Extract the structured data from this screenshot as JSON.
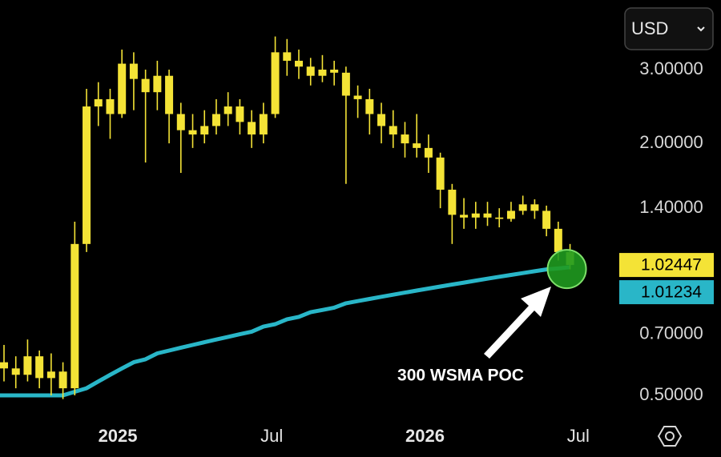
{
  "chart_data": {
    "type": "candlestick",
    "currency": "USD",
    "log_scale": true,
    "color": "#f4e336",
    "categories": [
      null,
      null,
      null,
      null,
      null,
      null,
      null,
      null,
      null,
      null,
      null,
      null,
      null,
      null,
      null,
      null,
      null,
      null,
      null,
      null,
      null,
      null,
      null,
      null,
      null,
      null,
      null,
      null,
      null,
      null,
      null,
      null,
      null,
      null,
      null,
      null,
      null,
      null,
      null,
      null,
      null,
      null,
      null,
      null,
      null,
      null,
      null,
      null,
      null
    ],
    "open": [
      0.6,
      0.58,
      0.56,
      0.62,
      0.55,
      0.57,
      0.52,
      1.15,
      2.45,
      2.55,
      2.35,
      3.1,
      2.85,
      2.65,
      2.9,
      2.35,
      2.15,
      2.1,
      2.2,
      2.35,
      2.45,
      2.25,
      2.1,
      2.35,
      3.3,
      3.15,
      3.05,
      2.9,
      3.0,
      2.95,
      2.6,
      2.55,
      2.35,
      2.2,
      2.1,
      2.0,
      1.95,
      1.85,
      1.55,
      1.35,
      1.33,
      1.36,
      1.33,
      1.32,
      1.38,
      1.43,
      1.38,
      1.25,
      1.1
    ],
    "high": [
      0.66,
      0.62,
      0.68,
      0.64,
      0.63,
      0.6,
      1.3,
      2.7,
      2.8,
      2.7,
      3.35,
      3.3,
      3.0,
      3.15,
      3.0,
      2.5,
      2.35,
      2.4,
      2.55,
      2.65,
      2.55,
      2.4,
      2.5,
      3.6,
      3.55,
      3.35,
      3.2,
      3.25,
      3.15,
      3.05,
      2.75,
      2.7,
      2.5,
      2.4,
      2.25,
      2.35,
      2.1,
      1.9,
      1.6,
      1.48,
      1.45,
      1.45,
      1.4,
      1.45,
      1.5,
      1.47,
      1.42,
      1.3,
      1.15
    ],
    "low": [
      0.54,
      0.52,
      0.54,
      0.52,
      0.5,
      0.49,
      0.5,
      1.1,
      2.2,
      2.05,
      2.3,
      2.4,
      1.8,
      2.4,
      2.0,
      1.7,
      1.95,
      2.0,
      2.1,
      2.2,
      2.1,
      1.95,
      2.0,
      2.3,
      2.9,
      2.85,
      2.75,
      2.8,
      2.75,
      1.6,
      2.3,
      2.1,
      2.0,
      1.95,
      1.85,
      1.85,
      1.7,
      1.4,
      1.15,
      1.25,
      1.25,
      1.27,
      1.26,
      1.3,
      1.35,
      1.32,
      1.2,
      1.05,
      1.0
    ],
    "close": [
      0.58,
      0.56,
      0.62,
      0.55,
      0.57,
      0.52,
      1.15,
      2.45,
      2.55,
      2.35,
      3.1,
      2.85,
      2.65,
      2.9,
      2.35,
      2.15,
      2.1,
      2.2,
      2.35,
      2.45,
      2.25,
      2.1,
      2.35,
      3.3,
      3.15,
      3.05,
      2.9,
      3.0,
      2.95,
      2.6,
      2.55,
      2.35,
      2.2,
      2.1,
      2.0,
      1.95,
      1.85,
      1.55,
      1.35,
      1.33,
      1.36,
      1.33,
      1.32,
      1.38,
      1.43,
      1.38,
      1.25,
      1.1,
      1.02447
    ],
    "overlay": {
      "type": "line",
      "color": "#29b6c8",
      "values": [
        0.5,
        0.5,
        0.5,
        0.5,
        0.5,
        0.5,
        0.51,
        0.52,
        0.54,
        0.56,
        0.58,
        0.6,
        0.61,
        0.63,
        0.64,
        0.65,
        0.66,
        0.67,
        0.68,
        0.69,
        0.7,
        0.71,
        0.73,
        0.74,
        0.76,
        0.77,
        0.79,
        0.8,
        0.81,
        0.83,
        0.84,
        0.85,
        0.86,
        0.87,
        0.88,
        0.89,
        0.9,
        0.91,
        0.92,
        0.93,
        0.94,
        0.95,
        0.96,
        0.97,
        0.98,
        0.99,
        1.0,
        1.005,
        1.01234
      ]
    },
    "ylim": [
      0.446,
      4.4
    ],
    "yticks": [
      {
        "value": 3,
        "label": "3.00000"
      },
      {
        "value": 2,
        "label": "2.00000"
      },
      {
        "value": 1.4,
        "label": "1.40000"
      },
      {
        "value": 0.7,
        "label": "0.70000"
      },
      {
        "value": 0.5,
        "label": "0.50000"
      }
    ],
    "xticks": [
      {
        "value": 9.65,
        "label": "2025"
      },
      {
        "value": 22.7,
        "label": "Jul"
      },
      {
        "value": 35.7,
        "label": "2026"
      },
      {
        "value": 48.7,
        "label": "Jul"
      }
    ],
    "annotation": "300 WSMA POC"
  }
}
